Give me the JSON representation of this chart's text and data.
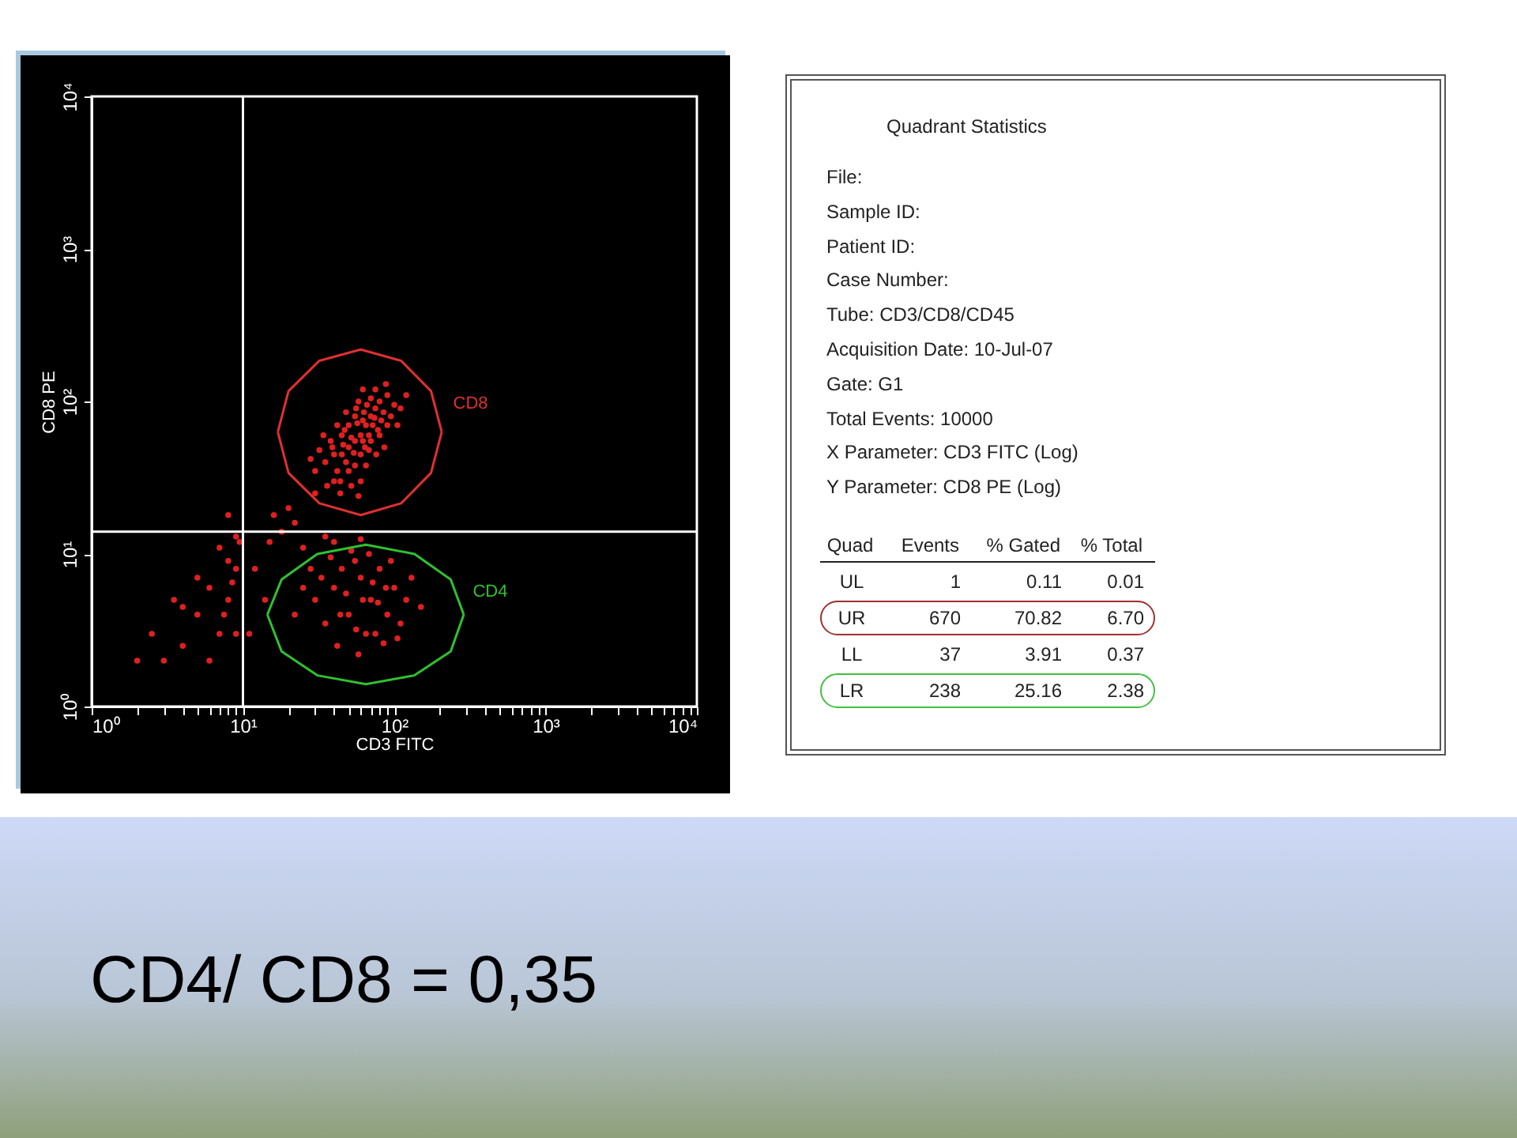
{
  "chart_data": [
    {
      "type": "scatter",
      "xlabel": "CD3 FITC",
      "ylabel": "CD8 PE",
      "log": "xy",
      "xlim": [
        1,
        10000
      ],
      "ylim": [
        1,
        10000
      ],
      "grid": false,
      "xticks": [
        {
          "value": 1,
          "label": "10⁰"
        },
        {
          "value": 2,
          "label": null
        },
        {
          "value": 3,
          "label": null
        },
        {
          "value": 4,
          "label": null
        },
        {
          "value": 5,
          "label": null
        },
        {
          "value": 6,
          "label": null
        },
        {
          "value": 7,
          "label": null
        },
        {
          "value": 8,
          "label": null
        },
        {
          "value": 9,
          "label": null
        },
        {
          "value": 10,
          "label": "10¹"
        },
        {
          "value": 20,
          "label": null
        },
        {
          "value": 30,
          "label": null
        },
        {
          "value": 40,
          "label": null
        },
        {
          "value": 50,
          "label": null
        },
        {
          "value": 60,
          "label": null
        },
        {
          "value": 70,
          "label": null
        },
        {
          "value": 80,
          "label": null
        },
        {
          "value": 90,
          "label": null
        },
        {
          "value": 100,
          "label": "10²"
        },
        {
          "value": 200,
          "label": null
        },
        {
          "value": 300,
          "label": null
        },
        {
          "value": 400,
          "label": null
        },
        {
          "value": 500,
          "label": null
        },
        {
          "value": 600,
          "label": null
        },
        {
          "value": 700,
          "label": null
        },
        {
          "value": 800,
          "label": null
        },
        {
          "value": 900,
          "label": null
        },
        {
          "value": 1000,
          "label": "10³"
        },
        {
          "value": 2000,
          "label": null
        },
        {
          "value": 3000,
          "label": null
        },
        {
          "value": 4000,
          "label": null
        },
        {
          "value": 5000,
          "label": null
        },
        {
          "value": 6000,
          "label": null
        },
        {
          "value": 7000,
          "label": null
        },
        {
          "value": 8000,
          "label": null
        },
        {
          "value": 9000,
          "label": null
        },
        {
          "value": 10000,
          "label": "10⁴"
        }
      ],
      "yticks": [
        {
          "value": 1,
          "label": "10⁰"
        },
        {
          "value": 10,
          "label": "10¹"
        },
        {
          "value": 100,
          "label": "10²"
        },
        {
          "value": 1000,
          "label": "10³"
        },
        {
          "value": 10000,
          "label": "10⁴"
        }
      ],
      "ref_lines": [
        {
          "axis": "x",
          "value": 10,
          "color": "#ffffff"
        },
        {
          "axis": "y",
          "value": 14,
          "color": "#ffffff"
        }
      ],
      "annotations": [
        "CD4/ CD8 = 0,35"
      ],
      "series": [
        {
          "marker": "circle",
          "color": "#e02020",
          "x": [
            60,
            55,
            65,
            70,
            50,
            45,
            75,
            80,
            62,
            52,
            48,
            40,
            42,
            38,
            35,
            68,
            72,
            85,
            90,
            66,
            55,
            50,
            45,
            60,
            64,
            70,
            78,
            82,
            95,
            100,
            58,
            62,
            75,
            88,
            40,
            36,
            44,
            50,
            55,
            30,
            32,
            28,
            34,
            42,
            48,
            56,
            70,
            80,
            90,
            105,
            110,
            52,
            60,
            65,
            46,
            54,
            62,
            68,
            74,
            57,
            63,
            47,
            39,
            44,
            58,
            76,
            86,
            120,
            30,
            30,
            40,
            50,
            60,
            70,
            80,
            90,
            45,
            55,
            65,
            35,
            25,
            100,
            120,
            75,
            42,
            58,
            85,
            110,
            130,
            28,
            38,
            52,
            68,
            48,
            62,
            33,
            95,
            150,
            72,
            22,
            44,
            56,
            78,
            88,
            105,
            40,
            60,
            25,
            35,
            8,
            7,
            5,
            4,
            6,
            9,
            3,
            2.5,
            8,
            7,
            9,
            5,
            6,
            4,
            9.5,
            8.5,
            3.5,
            2,
            7.5,
            9,
            12,
            15,
            18,
            14,
            11,
            16,
            20,
            22,
            8
          ],
          "values": [
            60,
            55,
            70,
            80,
            50,
            45,
            90,
            100,
            75,
            58,
            40,
            45,
            35,
            55,
            40,
            60,
            70,
            85,
            110,
            95,
            80,
            70,
            60,
            45,
            50,
            55,
            65,
            75,
            80,
            95,
            100,
            120,
            120,
            130,
            30,
            28,
            30,
            35,
            38,
            35,
            48,
            42,
            60,
            70,
            85,
            90,
            105,
            60,
            70,
            70,
            90,
            28,
            30,
            38,
            52,
            46,
            55,
            48,
            78,
            72,
            85,
            65,
            50,
            25,
            24,
            45,
            50,
            110,
            25,
            5,
            6,
            4,
            7,
            5,
            8,
            4,
            8,
            9,
            3,
            3.5,
            6,
            6,
            5,
            3,
            2.5,
            2.2,
            2.6,
            3.5,
            7,
            8,
            9.5,
            10.5,
            10,
            5.5,
            5,
            7,
            9,
            4.5,
            6.5,
            4,
            4,
            3.2,
            4.8,
            6,
            2.8,
            12,
            12.5,
            11,
            13,
            5,
            3,
            4,
            2.5,
            6,
            8,
            2,
            3,
            9,
            11,
            3,
            7,
            2,
            4.5,
            12,
            6.5,
            5,
            2,
            4,
            13,
            8,
            12,
            14,
            5,
            3,
            18,
            20,
            16,
            18
          ]
        },
        {
          "type": "line",
          "marker": "none",
          "name": "CD8",
          "color": "#e03030",
          "x": [
            17,
            20,
            32,
            60,
            111,
            175,
            206
          ],
          "values": [
            63,
            117,
            185,
            219,
            185,
            117,
            63
          ]
        },
        {
          "type": "line",
          "marker": "none",
          "color": "#e03030",
          "x": [
            17,
            20,
            32,
            60,
            111,
            175,
            206
          ],
          "values": [
            63,
            34,
            21.5,
            18,
            21.5,
            34,
            63
          ]
        },
        {
          "type": "line",
          "marker": "none",
          "name": "CD4",
          "color": "#30c030",
          "x": [
            14.5,
            18,
            31,
            65,
            136,
            236,
            288
          ],
          "values": [
            4,
            6.8,
            10,
            11.5,
            10,
            6.8,
            4
          ]
        },
        {
          "type": "line",
          "marker": "none",
          "color": "#30c030",
          "x": [
            14.5,
            18,
            31,
            65,
            136,
            236,
            288
          ],
          "values": [
            4,
            2.3,
            1.6,
            1.4,
            1.6,
            2.3,
            4
          ]
        }
      ]
    },
    {
      "type": "other",
      "title": "Quadrant Statistics",
      "annotations": [
        "File:",
        "Sample ID:",
        "Patient ID:",
        "Case Number:",
        "Tube: CD3/CD8/CD45",
        "Acquisition Date: 10-Jul-07",
        "Gate: G1",
        "Total Events: 10000",
        "X Parameter: CD3 FITC (Log)",
        "Y Parameter: CD8 PE (Log)"
      ],
      "categories": [
        "Quad",
        "Events",
        "% Gated",
        "% Total"
      ],
      "y_categories": [
        "UL",
        "UR",
        "LL",
        "LR"
      ],
      "cell_labels": [
        [
          "1",
          "0.11",
          "0.01"
        ],
        [
          "670",
          "70.82",
          "6.70"
        ],
        [
          "37",
          "3.91",
          "0.37"
        ],
        [
          "238",
          "25.16",
          "2.38"
        ]
      ],
      "colors": [
        null,
        "#a03030",
        null,
        "#40c040"
      ]
    }
  ]
}
